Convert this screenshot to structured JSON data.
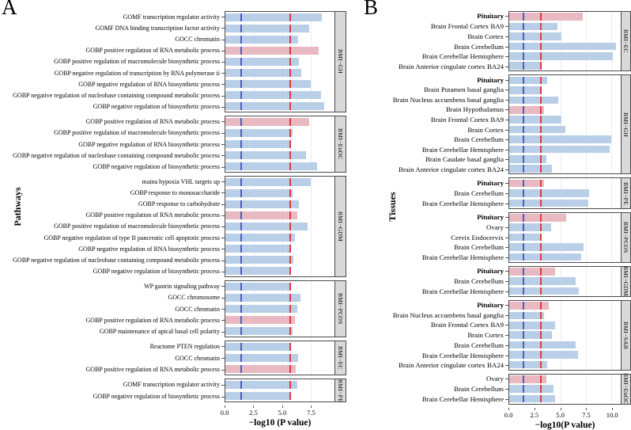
{
  "colors": {
    "bar_blue": "#b9cfe8",
    "bar_pink": "#e8b9c1",
    "ref_blue": "#4a5cc5",
    "ref_red": "#e3383e",
    "strip_bg": "#d9d9d9",
    "panel_border": "#4b4b4b",
    "grid": "#ececec"
  },
  "chart_data": [
    {
      "type": "bar",
      "orientation": "horizontal",
      "panel_letter": "A",
      "ylabel": "Pathways",
      "xlabel": "−log10 (P value)",
      "x_ticks": [
        0.0,
        2.5,
        5.0,
        7.5
      ],
      "x_tick_labels": [
        "0.0",
        "2.5",
        "5.0",
        "7.5"
      ],
      "xlim": [
        0,
        9.6
      ],
      "grid": true,
      "ref_lines": {
        "blue": 1.3,
        "red": 5.6
      },
      "legend_position": "none",
      "groups": [
        {
          "label": "BMI−GH",
          "bars": [
            {
              "category": "GOMF transcription regulator activity",
              "value": 8.5,
              "color": "blue"
            },
            {
              "category": "GOMF DNA binding transcription factor activity",
              "value": 7.4,
              "color": "blue"
            },
            {
              "category": "GOCC chromatin",
              "value": 6.4,
              "color": "blue"
            },
            {
              "category": "GOBP positive regulation of RNA metabolic process",
              "value": 8.2,
              "color": "pink"
            },
            {
              "category": "GOBP positive regulation of macromolecule biosynthetic process",
              "value": 6.5,
              "color": "blue"
            },
            {
              "category": "GOBP negative regulation of transcription by RNA polymerase ii",
              "value": 6.7,
              "color": "blue"
            },
            {
              "category": "GOBP negative regulation of RNA biosynthetic process",
              "value": 7.5,
              "color": "blue"
            },
            {
              "category": "GOBP negative regulation of nucleobase containing compound metabolic process",
              "value": 8.4,
              "color": "blue"
            },
            {
              "category": "GOBP negative regulation of biosynthetic process",
              "value": 8.7,
              "color": "blue"
            }
          ]
        },
        {
          "label": "BMI−EnOC",
          "bars": [
            {
              "category": "GOBP positive regulation of RNA metabolic process",
              "value": 7.4,
              "color": "pink"
            },
            {
              "category": "GOBP positive regulation of macromolecule biosynthetic process",
              "value": 5.9,
              "color": "blue"
            },
            {
              "category": "GOBP negative regulation of RNA biosynthetic process",
              "value": 5.8,
              "color": "blue"
            },
            {
              "category": "GOBP negative regulation of nucleobase containing compound metabolic process",
              "value": 7.1,
              "color": "blue"
            },
            {
              "category": "GOBP negative regulation of biosynthetic process",
              "value": 8.1,
              "color": "blue"
            }
          ]
        },
        {
          "label": "BMI−GDM",
          "bars": [
            {
              "category": "maina hypoxia VHL targets up",
              "value": 7.5,
              "color": "blue"
            },
            {
              "category": "GOBP response to monosaccharide",
              "value": 5.9,
              "color": "blue"
            },
            {
              "category": "GOBP response to carbohydrate",
              "value": 6.5,
              "color": "blue"
            },
            {
              "category": "GOBP positive regulation of RNA metabolic process",
              "value": 6.3,
              "color": "pink"
            },
            {
              "category": "GOBP positive regulation of macromolecule biosynthetic process",
              "value": 7.2,
              "color": "blue"
            },
            {
              "category": "GOBP negative regulation of type B pancreatic cell apoptotic process",
              "value": 6.1,
              "color": "blue"
            },
            {
              "category": "GOBP negative regulation of RNA biosynthetic process",
              "value": 5.8,
              "color": "blue"
            },
            {
              "category": "GOBP negative regulation of nucleobase containing compound metabolic process",
              "value": 6.0,
              "color": "blue"
            },
            {
              "category": "GOBP negative regulation of biosynthetic process",
              "value": 5.6,
              "color": "blue"
            }
          ]
        },
        {
          "label": "BMI−PCOS",
          "bars": [
            {
              "category": "WP gastrin signaling pathway",
              "value": 5.7,
              "color": "blue"
            },
            {
              "category": "GOCC chromosome",
              "value": 6.6,
              "color": "blue"
            },
            {
              "category": "GOCC chromatin",
              "value": 6.3,
              "color": "blue"
            },
            {
              "category": "GOBP positive regulation of RNA metabolic process",
              "value": 6.1,
              "color": "pink"
            },
            {
              "category": "GOBP maintenance of apical basal cell polarity",
              "value": 5.9,
              "color": "blue"
            }
          ]
        },
        {
          "label": "BMI−EC",
          "bars": [
            {
              "category": "Reactome PTEN regulation",
              "value": 5.7,
              "color": "blue"
            },
            {
              "category": "GOCC chromatin",
              "value": 6.4,
              "color": "blue"
            },
            {
              "category": "GOBP positive regulation of RNA metabolic process",
              "value": 6.2,
              "color": "pink"
            }
          ]
        },
        {
          "label": "BMI−PE",
          "bars": [
            {
              "category": "GOMF transcription regulator activity",
              "value": 6.3,
              "color": "blue"
            },
            {
              "category": "GOBP negative regulation of biosynthetic process",
              "value": 5.8,
              "color": "blue"
            }
          ]
        }
      ]
    },
    {
      "type": "bar",
      "orientation": "horizontal",
      "panel_letter": "B",
      "ylabel": "Tissues",
      "xlabel": "−log10(P value)",
      "x_ticks": [
        0.0,
        2.5,
        5.0,
        7.5,
        10.0
      ],
      "x_tick_labels": [
        "0.0",
        "2.5",
        "5.0",
        "7.5",
        "10.0"
      ],
      "xlim": [
        0,
        10.9
      ],
      "grid": true,
      "ref_lines": {
        "blue": 1.3,
        "red": 3.0
      },
      "legend_position": "none",
      "groups": [
        {
          "label": "BMI−EC",
          "bars": [
            {
              "category": "Pituitary",
              "value": 7.2,
              "color": "pink",
              "bold": true
            },
            {
              "category": "Brain Frontal Cortex BA9",
              "value": 4.7,
              "color": "blue"
            },
            {
              "category": "Brain Cortex",
              "value": 5.1,
              "color": "blue"
            },
            {
              "category": "Brain Cerebellum",
              "value": 10.4,
              "color": "blue"
            },
            {
              "category": "Brain Cerebellar Hemisphere",
              "value": 10.1,
              "color": "blue"
            },
            {
              "category": "Brain Anterior cingulate cortex BA24",
              "value": 3.2,
              "color": "blue"
            }
          ]
        },
        {
          "label": "BMI−GH",
          "bars": [
            {
              "category": "Pituitary",
              "value": 3.7,
              "color": "blue",
              "bold": true
            },
            {
              "category": "Brain Putamen basal ganglia",
              "value": 3.2,
              "color": "blue"
            },
            {
              "category": "Brain Nucleus accumbens basal ganglia",
              "value": 4.8,
              "color": "blue"
            },
            {
              "category": "Brain Hypothalamus",
              "value": 3.4,
              "color": "pink"
            },
            {
              "category": "Brain Frontal Cortex BA9",
              "value": 5.1,
              "color": "blue"
            },
            {
              "category": "Brain Cortex",
              "value": 5.5,
              "color": "blue"
            },
            {
              "category": "Brain Cerebellum",
              "value": 10.0,
              "color": "blue"
            },
            {
              "category": "Brain Cerebellar Hemisphere",
              "value": 9.8,
              "color": "blue"
            },
            {
              "category": "Brain Caudate basal ganglia",
              "value": 3.6,
              "color": "blue"
            },
            {
              "category": "Brain Anterior cingulate cortex BA24",
              "value": 4.2,
              "color": "blue"
            }
          ]
        },
        {
          "label": "BMI−PE",
          "bars": [
            {
              "category": "Pituitary",
              "value": 3.4,
              "color": "pink",
              "bold": true
            },
            {
              "category": "Brain Cerebellum",
              "value": 7.8,
              "color": "blue"
            },
            {
              "category": "Brain Cerebellar Hemisphere",
              "value": 7.7,
              "color": "blue"
            }
          ]
        },
        {
          "label": "BMI−PCOS",
          "bars": [
            {
              "category": "Pituitary",
              "value": 5.6,
              "color": "pink",
              "bold": true
            },
            {
              "category": "Ovary",
              "value": 4.1,
              "color": "blue"
            },
            {
              "category": "Cervix Endocervix",
              "value": 3.0,
              "color": "blue"
            },
            {
              "category": "Brain Cerebellum",
              "value": 7.3,
              "color": "blue"
            },
            {
              "category": "Brain Cerebellar Hemisphere",
              "value": 7.0,
              "color": "blue"
            }
          ]
        },
        {
          "label": "BMI−GDM",
          "bars": [
            {
              "category": "Pituitary",
              "value": 4.5,
              "color": "pink",
              "bold": true
            },
            {
              "category": "Brain Cerebellum",
              "value": 6.5,
              "color": "blue"
            },
            {
              "category": "Brain Cerebellar Hemisphere",
              "value": 6.8,
              "color": "blue"
            }
          ]
        },
        {
          "label": "BMI−SAB",
          "bars": [
            {
              "category": "Pituitary",
              "value": 3.9,
              "color": "pink",
              "bold": true
            },
            {
              "category": "Brain Nucleus accumbens basal ganglia",
              "value": 3.4,
              "color": "blue"
            },
            {
              "category": "Brain Frontal Cortex BA9",
              "value": 4.5,
              "color": "blue"
            },
            {
              "category": "Brain Cortex",
              "value": 4.2,
              "color": "blue"
            },
            {
              "category": "Brain Cerebellum",
              "value": 6.5,
              "color": "blue"
            },
            {
              "category": "Brain Cerebellar Hemisphere",
              "value": 6.7,
              "color": "blue"
            },
            {
              "category": "Brain Anterior cingulate cortex BA24",
              "value": 3.7,
              "color": "blue"
            }
          ]
        },
        {
          "label": "BMI−EnOC",
          "bars": [
            {
              "category": "Ovary",
              "value": 3.6,
              "color": "pink"
            },
            {
              "category": "Brain Cerebellum",
              "value": 4.3,
              "color": "blue"
            },
            {
              "category": "Brain Cerebellar Hemisphere",
              "value": 4.5,
              "color": "blue"
            }
          ]
        }
      ]
    }
  ]
}
